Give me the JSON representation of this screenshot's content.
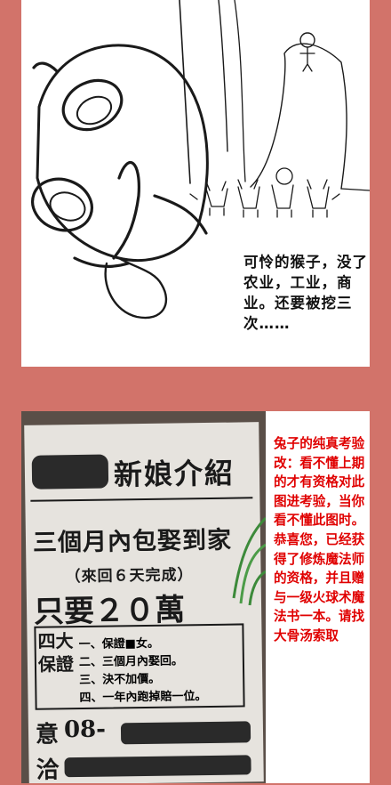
{
  "top_panel": {
    "caption": "可怜的猴子，没了农业，工业，商业。还要被挖三次……"
  },
  "bottom_panel": {
    "poster": {
      "headline": "新娘介紹",
      "line2": "三個月內包娶到家",
      "line3": "（來回６天完成）",
      "line4": "只要２０萬",
      "guarantee_label": "四大保證",
      "guarantees": [
        "一、保證■女。",
        "二、三個月內娶回。",
        "三、決不加價。",
        "四、一年內跑掉賠一位。"
      ],
      "contact_label": "意洽",
      "phone_prefix": "08-"
    },
    "caption": "兔子的纯真考验改：看不懂上期的才有资格对此图进考验，当你看不懂此图时。恭喜您，已经获得了修炼魔法师的资格，并且赠与一级火球术魔法书一本。请找大骨汤索取"
  },
  "colors": {
    "background": "#d2736a",
    "caption_red": "#e00000"
  }
}
